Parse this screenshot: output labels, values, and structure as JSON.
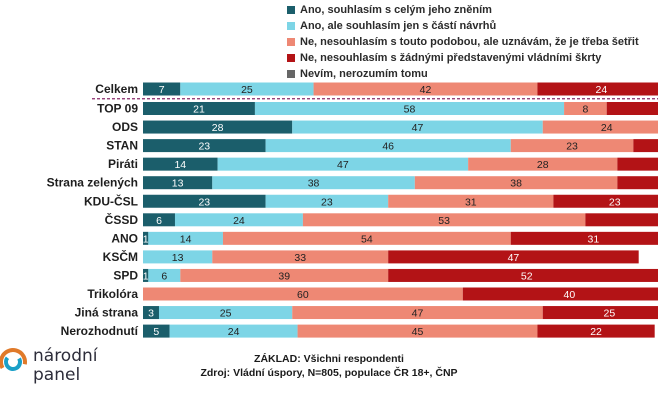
{
  "chart_data": {
    "type": "bar",
    "stacked": true,
    "orientation": "horizontal",
    "title": "",
    "xlim": [
      0,
      100
    ],
    "categories": [
      "Celkem",
      "TOP 09",
      "ODS",
      "STAN",
      "Piráti",
      "Strana zelených",
      "KDU-ČSL",
      "ČSSD",
      "ANO",
      "KSČM",
      "SPD",
      "Trikolóra",
      "Jiná strana",
      "Nerozhodnutí"
    ],
    "series": [
      {
        "name": "Ano, souhlasím s celým jeho zněním",
        "color": "#1b5e6b",
        "values": [
          7,
          21,
          28,
          23,
          14,
          13,
          23,
          6,
          1,
          0,
          1,
          0,
          3,
          5
        ],
        "labels": [
          "7",
          "21",
          "28",
          "23",
          "14",
          "13",
          "23",
          "6",
          "1",
          "",
          "1",
          "",
          "3",
          "5"
        ]
      },
      {
        "name": "Ano, ale souhlasím jen s částí návrhů",
        "color": "#7dd5e6",
        "values": [
          25,
          58,
          47,
          46,
          47,
          38,
          23,
          24,
          14,
          13,
          6,
          0,
          25,
          24
        ],
        "labels": [
          "25",
          "58",
          "47",
          "46",
          "47",
          "38",
          "23",
          "24",
          "14",
          "13",
          "6",
          "",
          "25",
          "24"
        ]
      },
      {
        "name": "Ne, nesouhlasím s touto podobou, ale uznávám, že je třeba šetřit",
        "color": "#ee8874",
        "values": [
          42,
          8,
          24,
          23,
          28,
          38,
          31,
          53,
          54,
          33,
          39,
          60,
          47,
          45
        ],
        "labels": [
          "42",
          "8",
          "24",
          "23",
          "28",
          "38",
          "31",
          "53",
          "54",
          "33",
          "39",
          "60",
          "47",
          "45"
        ]
      },
      {
        "name": "Ne, nesouhlasím s žádnými představenými vládními škrty",
        "color": "#b31316",
        "values": [
          24,
          13,
          1,
          8,
          11,
          11,
          23,
          17,
          31,
          47,
          52,
          40,
          25,
          22
        ],
        "labels": [
          "24",
          "",
          "",
          "",
          "",
          "",
          "23",
          "",
          "31",
          "47",
          "52",
          "40",
          "25",
          "22"
        ]
      },
      {
        "name": "Nevím, nerozumím tomu",
        "color": "#666666",
        "values": [
          2,
          0,
          0,
          0,
          0,
          0,
          0,
          0,
          0,
          0,
          0,
          0,
          0,
          0
        ],
        "labels": [
          "",
          "",
          "",
          "",
          "",
          "",
          "",
          "",
          "",
          "",
          "",
          "",
          "",
          ""
        ]
      }
    ]
  },
  "legend_items": [
    {
      "label": "Ano, souhlasím s celým jeho zněním",
      "color": "#1b5e6b"
    },
    {
      "label": "Ano, ale souhlasím jen s částí návrhů",
      "color": "#7dd5e6"
    },
    {
      "label": "Ne, nesouhlasím s touto podobou, ale uznávám, že je třeba šetřit",
      "color": "#ee8874"
    },
    {
      "label": "Ne, nesouhlasím s žádnými představenými vládními škrty",
      "color": "#b31316"
    },
    {
      "label": "Nevím, nerozumím tomu",
      "color": "#666666"
    }
  ],
  "footer": {
    "base": "ZÁKLAD: Všichni respondenti",
    "source": "Zdroj: Vládní úspory, N=805, populace ČR 18+, ČNP"
  },
  "logo": {
    "line1": "národní",
    "line2": "panel"
  },
  "colors": {
    "separator": "#8a2a6a"
  }
}
